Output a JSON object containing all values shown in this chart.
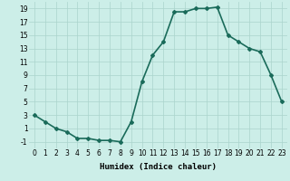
{
  "xlabel": "Humidex (Indice chaleur)",
  "x": [
    0,
    1,
    2,
    3,
    4,
    5,
    6,
    7,
    8,
    9,
    10,
    11,
    12,
    13,
    14,
    15,
    16,
    17,
    18,
    19,
    20,
    21,
    22,
    23
  ],
  "y": [
    3,
    2,
    1,
    0.5,
    -0.5,
    -0.5,
    -0.8,
    -0.8,
    -1,
    2,
    8,
    12,
    14,
    18.5,
    18.5,
    19,
    19,
    19.2,
    15,
    14,
    13,
    12.5,
    9,
    5
  ],
  "line_color": "#1a6b5a",
  "marker": "D",
  "marker_size": 2.0,
  "bg_color": "#cceee8",
  "grid_color": "#aad4cc",
  "ylim": [
    -2,
    20
  ],
  "yticks": [
    -1,
    1,
    3,
    5,
    7,
    9,
    11,
    13,
    15,
    17,
    19
  ],
  "xticks": [
    0,
    1,
    2,
    3,
    4,
    5,
    6,
    7,
    8,
    9,
    10,
    11,
    12,
    13,
    14,
    15,
    16,
    17,
    18,
    19,
    20,
    21,
    22,
    23
  ],
  "xtick_labels": [
    "0",
    "1",
    "2",
    "3",
    "4",
    "5",
    "6",
    "7",
    "8",
    "9",
    "10",
    "11",
    "12",
    "13",
    "14",
    "15",
    "16",
    "17",
    "18",
    "19",
    "20",
    "21",
    "22",
    "23"
  ],
  "line_width": 1.2,
  "tick_fontsize": 5.5,
  "xlabel_fontsize": 6.5
}
